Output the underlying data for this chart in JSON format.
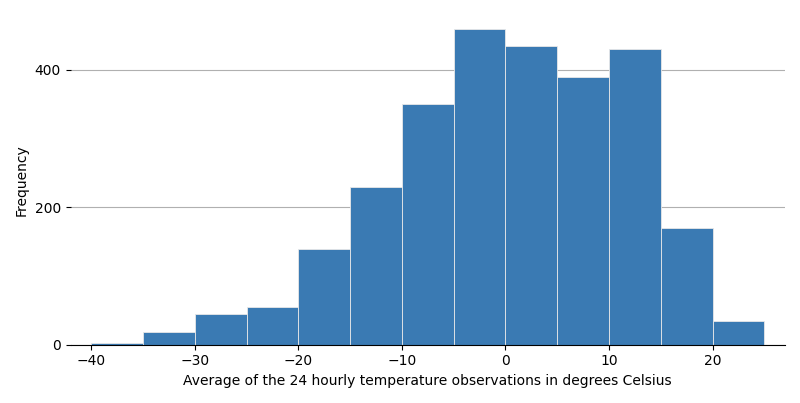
{
  "bin_edges": [
    -40,
    -35,
    -30,
    -25,
    -20,
    -15,
    -10,
    -5,
    0,
    5,
    10,
    15,
    20,
    25
  ],
  "frequencies": [
    2,
    18,
    45,
    55,
    140,
    230,
    350,
    460,
    435,
    390,
    430,
    170,
    35
  ],
  "bar_color": "#3a7ab3",
  "bar_edgecolor": "#e8e8e8",
  "xlabel": "Average of the 24 hourly temperature observations in degrees Celsius",
  "ylabel": "Frequency",
  "xlim": [
    -42,
    27
  ],
  "ylim": [
    0,
    480
  ],
  "yticks": [
    0,
    200,
    400
  ],
  "xticks": [
    -40,
    -30,
    -20,
    -10,
    0,
    10,
    20
  ],
  "grid_color": "#b0b0b0",
  "grid_linewidth": 0.8,
  "background_color": "#ffffff",
  "xlabel_fontsize": 10,
  "ylabel_fontsize": 10,
  "tick_fontsize": 10
}
